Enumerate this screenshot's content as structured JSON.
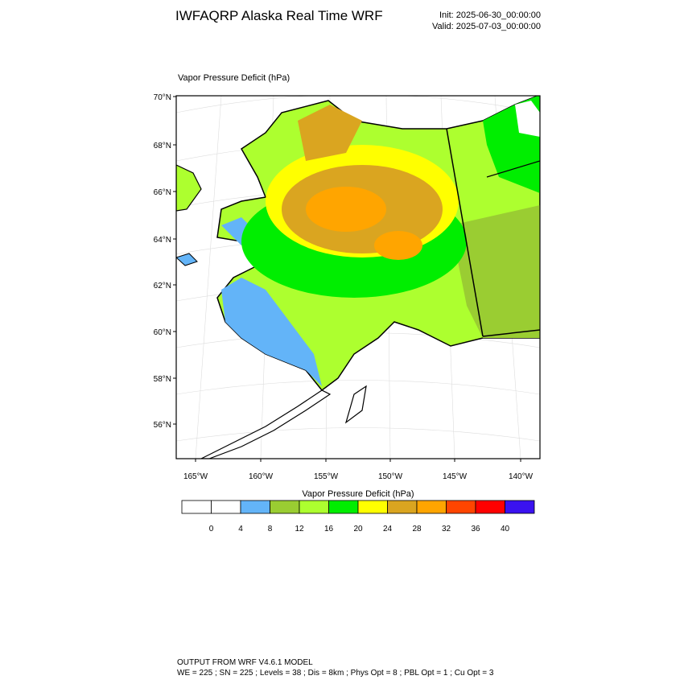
{
  "header": {
    "title": "IWFAQRP Alaska Real Time WRF",
    "init": "Init: 2025-06-30_00:00:00",
    "valid": "Valid: 2025-07-03_00:00:00"
  },
  "map": {
    "subtitle": "Vapor Pressure Deficit   (hPa)",
    "lat_labels": [
      "70°N",
      "68°N",
      "66°N",
      "64°N",
      "62°N",
      "60°N",
      "58°N",
      "56°N"
    ],
    "lon_labels": [
      "165°W",
      "160°W",
      "155°W",
      "150°W",
      "145°W",
      "140°W"
    ]
  },
  "colorbar": {
    "title": "Vapor Pressure Deficit  (hPa)",
    "levels": [
      0,
      4,
      8,
      12,
      16,
      20,
      24,
      28,
      32,
      36,
      40
    ],
    "colors": [
      "#ffffff",
      "#ffffff",
      "#63b4f8",
      "#9acd32",
      "#adff2f",
      "#00ee00",
      "#ffff00",
      "#daa520",
      "#ffa500",
      "#ff4500",
      "#ff0000",
      "#3a12f0"
    ]
  },
  "footer": {
    "line1": "OUTPUT FROM WRF V4.6.1 MODEL",
    "line2": "WE = 225 ; SN = 225 ; Levels = 38 ; Dis = 8km ; Phys Opt = 8 ; PBL Opt = 1 ; Cu Opt = 3"
  }
}
